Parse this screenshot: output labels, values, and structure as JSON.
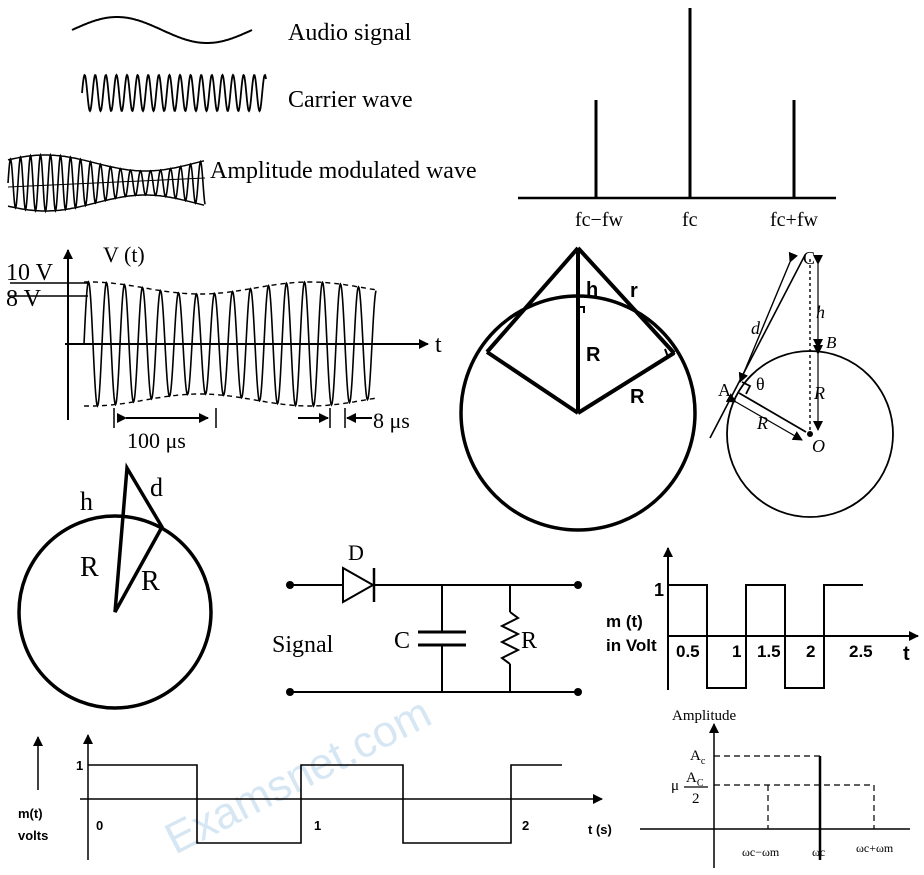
{
  "panel_modulation": {
    "audio_label": "Audio signal",
    "carrier_label": "Carrier wave",
    "am_label": "Amplitude modulated wave"
  },
  "panel_spectrum": {
    "lower_label": "fc−fw",
    "center_label": "fc",
    "upper_label": "fc+fw"
  },
  "panel_vt": {
    "ylabel": "V (t)",
    "xlabel": "t",
    "level_high": "10 V",
    "level_low": "8 V",
    "period_label": "100 μs",
    "carrier_period_label": "8 μs"
  },
  "panel_tower_circle": {
    "h": "h",
    "r": "r",
    "R_vertical": "R",
    "R_slant": "R"
  },
  "panel_tangent_geometry": {
    "C": "C",
    "B": "B",
    "A": "A",
    "O": "O",
    "h": "h",
    "d": "d",
    "R_vertical": "R",
    "R_slant": "R",
    "theta": "θ"
  },
  "panel_small_circle": {
    "h": "h",
    "d": "d",
    "R_left": "R",
    "R_right": "R"
  },
  "panel_detector": {
    "diode": "D",
    "signal": "Signal",
    "capacitor": "C",
    "resistor": "R"
  },
  "panel_square_top": {
    "ylabel_line1": "m (t)",
    "ylabel_line2": "in Volt",
    "xlabel": "t",
    "ytick": "1",
    "xticks": [
      "0.5",
      "1",
      "1.5",
      "2",
      "2.5"
    ]
  },
  "panel_square_bottom": {
    "ylabel_line1": "m(t)",
    "ylabel_line2": "volts",
    "xlabel": "t (s)",
    "ytick": "1",
    "xticks": [
      "0",
      "1",
      "2"
    ]
  },
  "panel_amplitude": {
    "title": "Amplitude",
    "ac": "A",
    "ac_sub": "c",
    "mu": "μ",
    "frac_num": "A",
    "frac_num_sub": "C",
    "frac_den": "2",
    "lower": "ωc−ωm",
    "center": "ωc",
    "upper": "ωc+ωm"
  },
  "watermark": "Examsnet.com"
}
